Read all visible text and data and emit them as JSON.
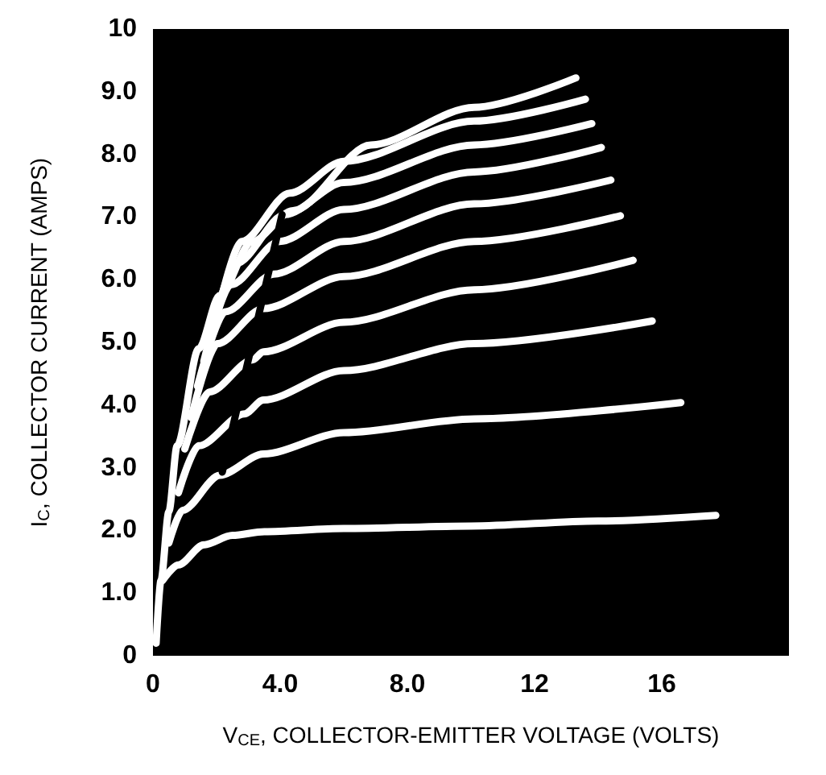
{
  "chart_data": {
    "type": "line",
    "xlabel": "V$_{CE}$, COLLECTOR-EMITTER VOLTAGE (VOLTS)",
    "ylabel": "I$_{C}$, COLLECTOR CURRENT (AMPS)",
    "xlim": [
      0,
      20
    ],
    "ylim": [
      0,
      10
    ],
    "xticks": [
      0,
      {
        "value": 4,
        "label": "4.0"
      },
      {
        "value": 8,
        "label": "8.0"
      },
      12,
      16
    ],
    "yticks": [
      0,
      {
        "value": 1,
        "label": "1.0"
      },
      {
        "value": 2,
        "label": "2.0"
      },
      {
        "value": 3,
        "label": "3.0"
      },
      {
        "value": 4,
        "label": "4.0"
      },
      {
        "value": 5,
        "label": "5.0"
      },
      {
        "value": 6,
        "label": "6.0"
      },
      {
        "value": 7,
        "label": "7.0"
      },
      {
        "value": 8,
        "label": "8.0"
      },
      {
        "value": 9,
        "label": "9.0"
      },
      10
    ],
    "grid": false,
    "marker": "none",
    "line_style": "solid",
    "series": [
      {
        "color": "#ffffff",
        "x": [
          0.3,
          0.8,
          1.6,
          2.5,
          3.5,
          6,
          10,
          14,
          17.7
        ],
        "values": [
          1.2,
          1.45,
          1.77,
          1.92,
          1.98,
          2.03,
          2.07,
          2.15,
          2.24
        ]
      },
      {
        "color": "#ffffff",
        "x": [
          0.5,
          0.93,
          2.1,
          3.47,
          6,
          10.1,
          16.6
        ],
        "values": [
          1.8,
          2.32,
          2.88,
          3.22,
          3.56,
          3.78,
          4.04
        ]
      },
      {
        "color": "#ffffff",
        "x": [
          0.8,
          1.44,
          2.88,
          3.47,
          6,
          10.1,
          15.7
        ],
        "values": [
          2.6,
          3.35,
          3.86,
          4.08,
          4.55,
          4.98,
          5.34
        ]
      },
      {
        "color": "#ffffff",
        "x": [
          1.0,
          1.78,
          3.13,
          3.47,
          6,
          10.1,
          15.1
        ],
        "values": [
          3.3,
          4.21,
          4.72,
          4.85,
          5.32,
          5.84,
          6.31
        ]
      },
      {
        "color": "#ffffff",
        "x": [
          1.2,
          2.03,
          3.47,
          6,
          10.1,
          14.7
        ],
        "values": [
          3.8,
          4.98,
          5.54,
          6.05,
          6.61,
          7.02
        ]
      },
      {
        "color": "#ffffff",
        "x": [
          1.4,
          2.28,
          3.8,
          6,
          10.1,
          14.4
        ],
        "values": [
          4.3,
          5.49,
          6.09,
          6.61,
          7.21,
          7.59
        ]
      },
      {
        "color": "#ffffff",
        "x": [
          1.6,
          2.45,
          3.98,
          6,
          10.1,
          14.1
        ],
        "values": [
          4.7,
          5.92,
          6.61,
          7.12,
          7.72,
          8.11
        ]
      },
      {
        "color": "#ffffff",
        "x": [
          1.8,
          2.62,
          4.15,
          6,
          10.1,
          13.8
        ],
        "values": [
          5.1,
          6.26,
          7.04,
          7.55,
          8.15,
          8.49
        ]
      },
      {
        "color": "#ffffff",
        "x": [
          2.0,
          2.79,
          4.3,
          6,
          10.1,
          13.6
        ],
        "values": [
          5.4,
          6.61,
          7.38,
          7.89,
          8.53,
          8.88
        ]
      },
      {
        "color": "#ffffff",
        "x": [
          0.1,
          0.25,
          0.5,
          0.76,
          1.44,
          2.1,
          3.1,
          4.4,
          6.85,
          10.1,
          13.3
        ],
        "values": [
          0.2,
          1.2,
          2.3,
          3.35,
          4.9,
          5.75,
          6.6,
          7.1,
          8.15,
          8.75,
          9.22
        ]
      },
      {
        "color": "#000000",
        "x": [
          2.18,
          4.06
        ],
        "values": [
          2.93,
          7.04
        ]
      }
    ]
  }
}
